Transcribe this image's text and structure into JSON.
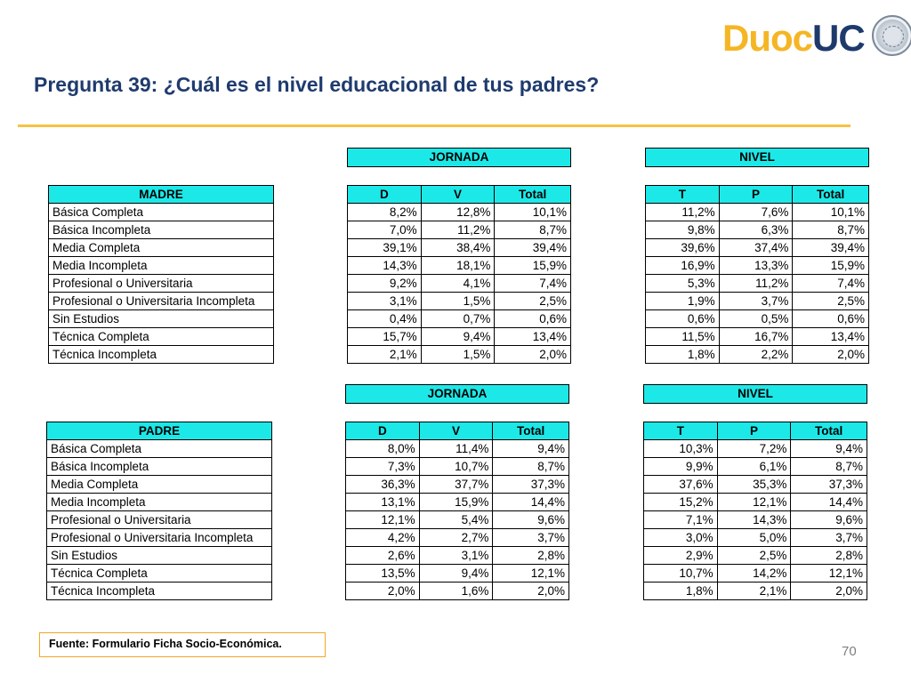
{
  "logo": {
    "duoc": "Duoc",
    "uc": "UC"
  },
  "title": "Pregunta 39: ¿Cuál es el nivel educacional de tus padres?",
  "group_headers": {
    "jornada": "JORNADA",
    "nivel": "NIVEL"
  },
  "row_labels": [
    "Básica Completa",
    "Básica Incompleta",
    "Media Completa",
    "Media Incompleta",
    "Profesional o Universitaria",
    "Profesional o Universitaria Incompleta",
    "Sin Estudios",
    "Técnica Completa",
    "Técnica Incompleta"
  ],
  "jornada_cols": [
    "D",
    "V",
    "Total"
  ],
  "nivel_cols": [
    "T",
    "P",
    "Total"
  ],
  "madre": {
    "label": "MADRE",
    "jornada": [
      [
        "8,2%",
        "12,8%",
        "10,1%"
      ],
      [
        "7,0%",
        "11,2%",
        "8,7%"
      ],
      [
        "39,1%",
        "38,4%",
        "39,4%"
      ],
      [
        "14,3%",
        "18,1%",
        "15,9%"
      ],
      [
        "9,2%",
        "4,1%",
        "7,4%"
      ],
      [
        "3,1%",
        "1,5%",
        "2,5%"
      ],
      [
        "0,4%",
        "0,7%",
        "0,6%"
      ],
      [
        "15,7%",
        "9,4%",
        "13,4%"
      ],
      [
        "2,1%",
        "1,5%",
        "2,0%"
      ]
    ],
    "nivel": [
      [
        "11,2%",
        "7,6%",
        "10,1%"
      ],
      [
        "9,8%",
        "6,3%",
        "8,7%"
      ],
      [
        "39,6%",
        "37,4%",
        "39,4%"
      ],
      [
        "16,9%",
        "13,3%",
        "15,9%"
      ],
      [
        "5,3%",
        "11,2%",
        "7,4%"
      ],
      [
        "1,9%",
        "3,7%",
        "2,5%"
      ],
      [
        "0,6%",
        "0,5%",
        "0,6%"
      ],
      [
        "11,5%",
        "16,7%",
        "13,4%"
      ],
      [
        "1,8%",
        "2,2%",
        "2,0%"
      ]
    ]
  },
  "padre": {
    "label": "PADRE",
    "jornada": [
      [
        "8,0%",
        "11,4%",
        "9,4%"
      ],
      [
        "7,3%",
        "10,7%",
        "8,7%"
      ],
      [
        "36,3%",
        "37,7%",
        "37,3%"
      ],
      [
        "13,1%",
        "15,9%",
        "14,4%"
      ],
      [
        "12,1%",
        "5,4%",
        "9,6%"
      ],
      [
        "4,2%",
        "2,7%",
        "3,7%"
      ],
      [
        "2,6%",
        "3,1%",
        "2,8%"
      ],
      [
        "13,5%",
        "9,4%",
        "12,1%"
      ],
      [
        "2,0%",
        "1,6%",
        "2,0%"
      ]
    ],
    "nivel": [
      [
        "10,3%",
        "7,2%",
        "9,4%"
      ],
      [
        "9,9%",
        "6,1%",
        "8,7%"
      ],
      [
        "37,6%",
        "35,3%",
        "37,3%"
      ],
      [
        "15,2%",
        "12,1%",
        "14,4%"
      ],
      [
        "7,1%",
        "14,3%",
        "9,6%"
      ],
      [
        "3,0%",
        "5,0%",
        "3,7%"
      ],
      [
        "2,9%",
        "2,5%",
        "2,8%"
      ],
      [
        "10,7%",
        "14,2%",
        "12,1%"
      ],
      [
        "1,8%",
        "2,1%",
        "2,0%"
      ]
    ]
  },
  "source": "Fuente: Formulario Ficha Socio-Económica.",
  "page_number": "70",
  "colors": {
    "header_fill": "#1de8e8",
    "title": "#1f3b6e",
    "rule": "#f5c242",
    "logo_duoc": "#f5b625",
    "logo_uc": "#1e3a6d"
  }
}
